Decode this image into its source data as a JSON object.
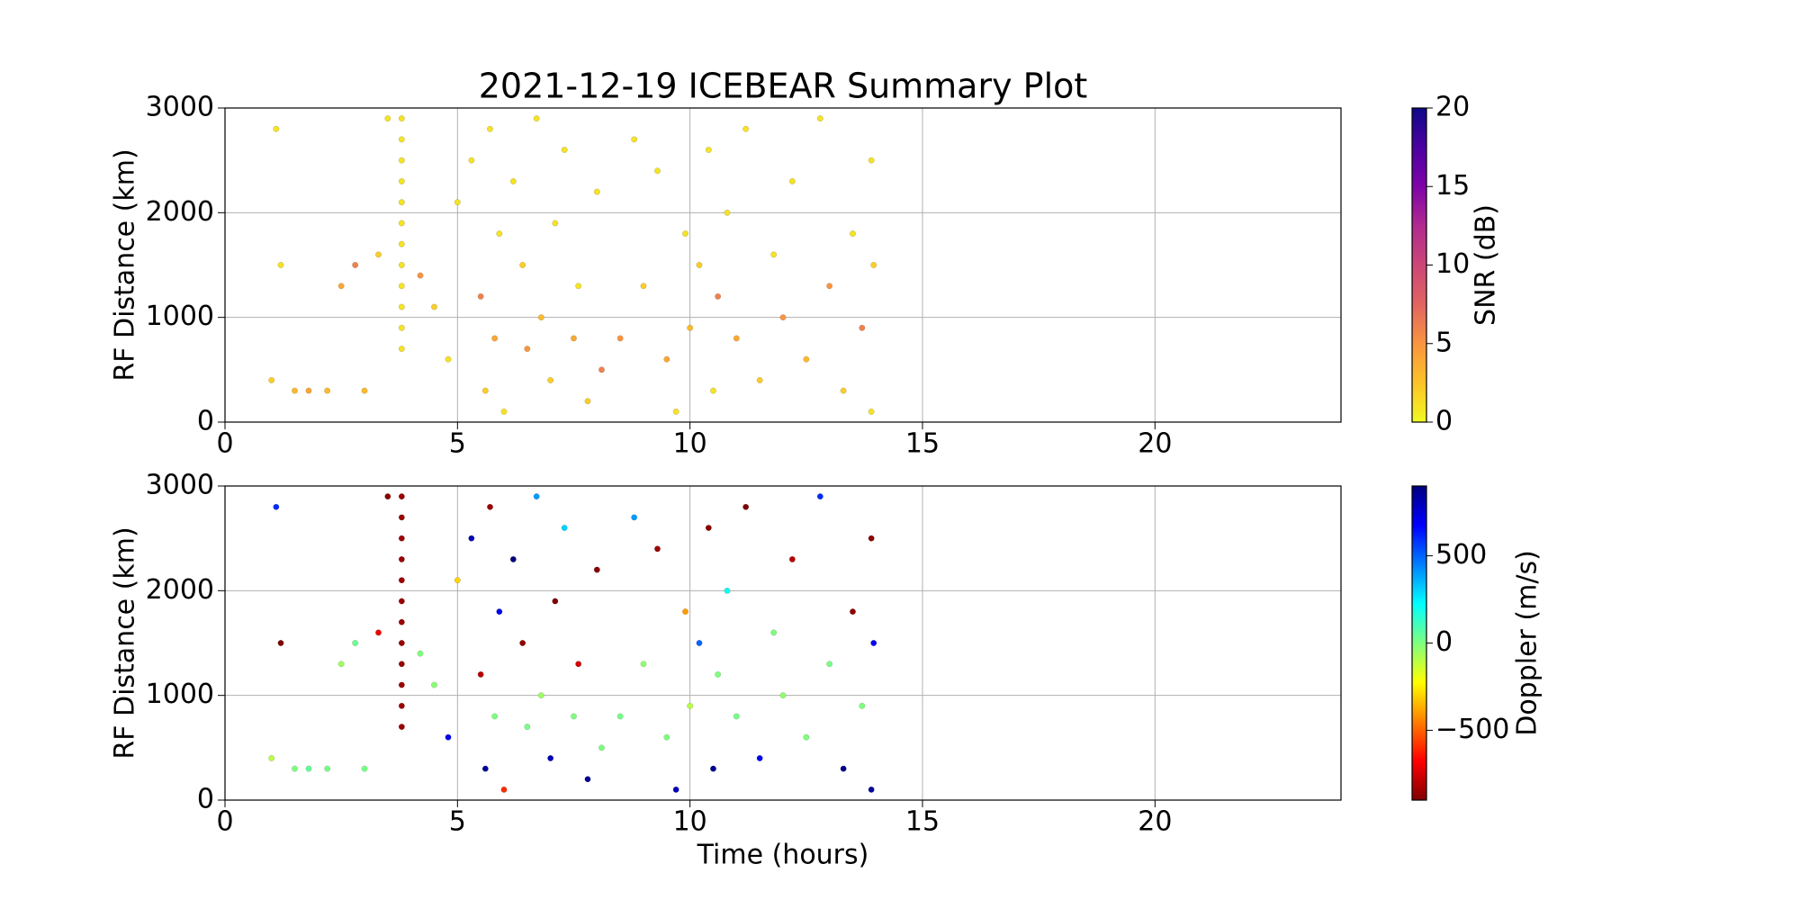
{
  "chart_data": [
    {
      "type": "scatter",
      "title": "2021-12-19 ICEBEAR Summary Plot",
      "ylabel": "RF Distance (km)",
      "xlim": [
        0,
        24
      ],
      "xticks": [
        0,
        5,
        10,
        15,
        20
      ],
      "ylim": [
        0,
        3000
      ],
      "yticks": [
        0,
        1000,
        2000,
        3000
      ],
      "grid": true,
      "colormap": "plasma_r",
      "clim": [
        0,
        20
      ],
      "cticks": [
        0,
        5,
        10,
        15,
        20
      ],
      "clabel": "SNR (dB)",
      "x": [
        3.8,
        3.8,
        3.8,
        3.8,
        3.8,
        3.8,
        3.8,
        3.8,
        3.8,
        3.8,
        3.8,
        3.8,
        1.0,
        1.1,
        1.2,
        1.5,
        1.8,
        2.2,
        2.5,
        2.8,
        3.0,
        3.3,
        3.5,
        4.2,
        4.5,
        4.8,
        5.0,
        5.3,
        5.5,
        5.6,
        5.7,
        5.8,
        5.9,
        6.0,
        6.2,
        6.4,
        6.5,
        6.7,
        6.8,
        7.0,
        7.1,
        7.3,
        7.5,
        7.6,
        7.8,
        8.0,
        8.1,
        8.5,
        8.8,
        9.0,
        9.3,
        9.5,
        9.7,
        9.9,
        10.0,
        10.2,
        10.4,
        10.5,
        10.6,
        10.8,
        11.0,
        11.2,
        11.5,
        11.8,
        12.0,
        12.2,
        12.5,
        12.8,
        13.0,
        13.3,
        13.5,
        13.7,
        13.9,
        13.9,
        13.95
      ],
      "y": [
        700,
        900,
        1100,
        1300,
        1500,
        1700,
        1900,
        2100,
        2300,
        2500,
        2700,
        2900,
        400,
        2800,
        1500,
        300,
        300,
        300,
        1300,
        1500,
        300,
        1600,
        2900,
        1400,
        1100,
        600,
        2100,
        2500,
        1200,
        300,
        2800,
        800,
        1800,
        100,
        2300,
        1500,
        700,
        2900,
        1000,
        400,
        1900,
        2600,
        800,
        1300,
        200,
        2200,
        500,
        800,
        2700,
        1300,
        2400,
        600,
        100,
        1800,
        900,
        1500,
        2600,
        300,
        1200,
        2000,
        800,
        2800,
        400,
        1600,
        1000,
        2300,
        600,
        2900,
        1300,
        300,
        1800,
        900,
        2500,
        100,
        1500
      ],
      "c": [
        1,
        1,
        1,
        1,
        1,
        1,
        1,
        1,
        1,
        1,
        1,
        1,
        2,
        1,
        1,
        3,
        4,
        3,
        4,
        6,
        3,
        2,
        1,
        5,
        2,
        1,
        1,
        1,
        6,
        2,
        1,
        4,
        1,
        1,
        1,
        2,
        5,
        1,
        3,
        2,
        1,
        1,
        4,
        1,
        2,
        1,
        6,
        5,
        1,
        2,
        1,
        4,
        1,
        1,
        3,
        2,
        1,
        1,
        6,
        1,
        4,
        1,
        2,
        1,
        5,
        1,
        3,
        1,
        5,
        2,
        1,
        6,
        1,
        1,
        2
      ]
    },
    {
      "type": "scatter",
      "xlabel": "Time (hours)",
      "ylabel": "RF Distance (km)",
      "xlim": [
        0,
        24
      ],
      "xticks": [
        0,
        5,
        10,
        15,
        20
      ],
      "ylim": [
        0,
        3000
      ],
      "yticks": [
        0,
        1000,
        2000,
        3000
      ],
      "grid": true,
      "colormap": "jet_r",
      "clim": [
        -900,
        900
      ],
      "cticks": [
        {
          "value": -500,
          "label": "−500"
        },
        0,
        500
      ],
      "clabel": "Doppler (m/s)",
      "x": [
        3.8,
        3.8,
        3.8,
        3.8,
        3.8,
        3.8,
        3.8,
        3.8,
        3.8,
        3.8,
        3.8,
        3.8,
        1.0,
        1.1,
        1.2,
        1.5,
        1.8,
        2.2,
        2.5,
        2.8,
        3.0,
        3.3,
        3.5,
        4.2,
        4.5,
        4.8,
        5.0,
        5.3,
        5.5,
        5.6,
        5.7,
        5.8,
        5.9,
        6.0,
        6.2,
        6.4,
        6.5,
        6.7,
        6.8,
        7.0,
        7.1,
        7.3,
        7.5,
        7.6,
        7.8,
        8.0,
        8.1,
        8.5,
        8.8,
        9.0,
        9.3,
        9.5,
        9.7,
        9.9,
        10.0,
        10.2,
        10.4,
        10.5,
        10.6,
        10.8,
        11.0,
        11.2,
        11.5,
        11.8,
        12.0,
        12.2,
        12.5,
        12.8,
        13.0,
        13.3,
        13.5,
        13.7,
        13.9,
        13.9,
        13.95
      ],
      "y": [
        700,
        900,
        1100,
        1300,
        1500,
        1700,
        1900,
        2100,
        2300,
        2500,
        2700,
        2900,
        400,
        2800,
        1500,
        300,
        300,
        300,
        1300,
        1500,
        300,
        1600,
        2900,
        1400,
        1100,
        600,
        2100,
        2500,
        1200,
        300,
        2800,
        800,
        1800,
        100,
        2300,
        1500,
        700,
        2900,
        1000,
        400,
        1900,
        2600,
        800,
        1300,
        200,
        2200,
        500,
        800,
        2700,
        1300,
        2400,
        600,
        100,
        1800,
        900,
        1500,
        2600,
        300,
        1200,
        2000,
        800,
        2800,
        400,
        1600,
        1000,
        2300,
        600,
        2900,
        1300,
        300,
        1800,
        900,
        2500,
        100,
        1500
      ],
      "c": [
        -850,
        -850,
        -850,
        -850,
        -850,
        -850,
        -850,
        -850,
        -850,
        -850,
        -850,
        -850,
        -100,
        600,
        -900,
        0,
        50,
        20,
        -50,
        30,
        10,
        -700,
        -880,
        0,
        -20,
        700,
        -300,
        800,
        -800,
        850,
        -850,
        0,
        700,
        -600,
        900,
        -870,
        10,
        400,
        -50,
        800,
        -900,
        300,
        0,
        -750,
        870,
        -880,
        0,
        20,
        400,
        -30,
        -850,
        0,
        800,
        -400,
        -100,
        500,
        -880,
        870,
        0,
        200,
        10,
        -900,
        700,
        0,
        -30,
        -800,
        0,
        600,
        10,
        880,
        -870,
        0,
        -880,
        850,
        700
      ]
    }
  ]
}
